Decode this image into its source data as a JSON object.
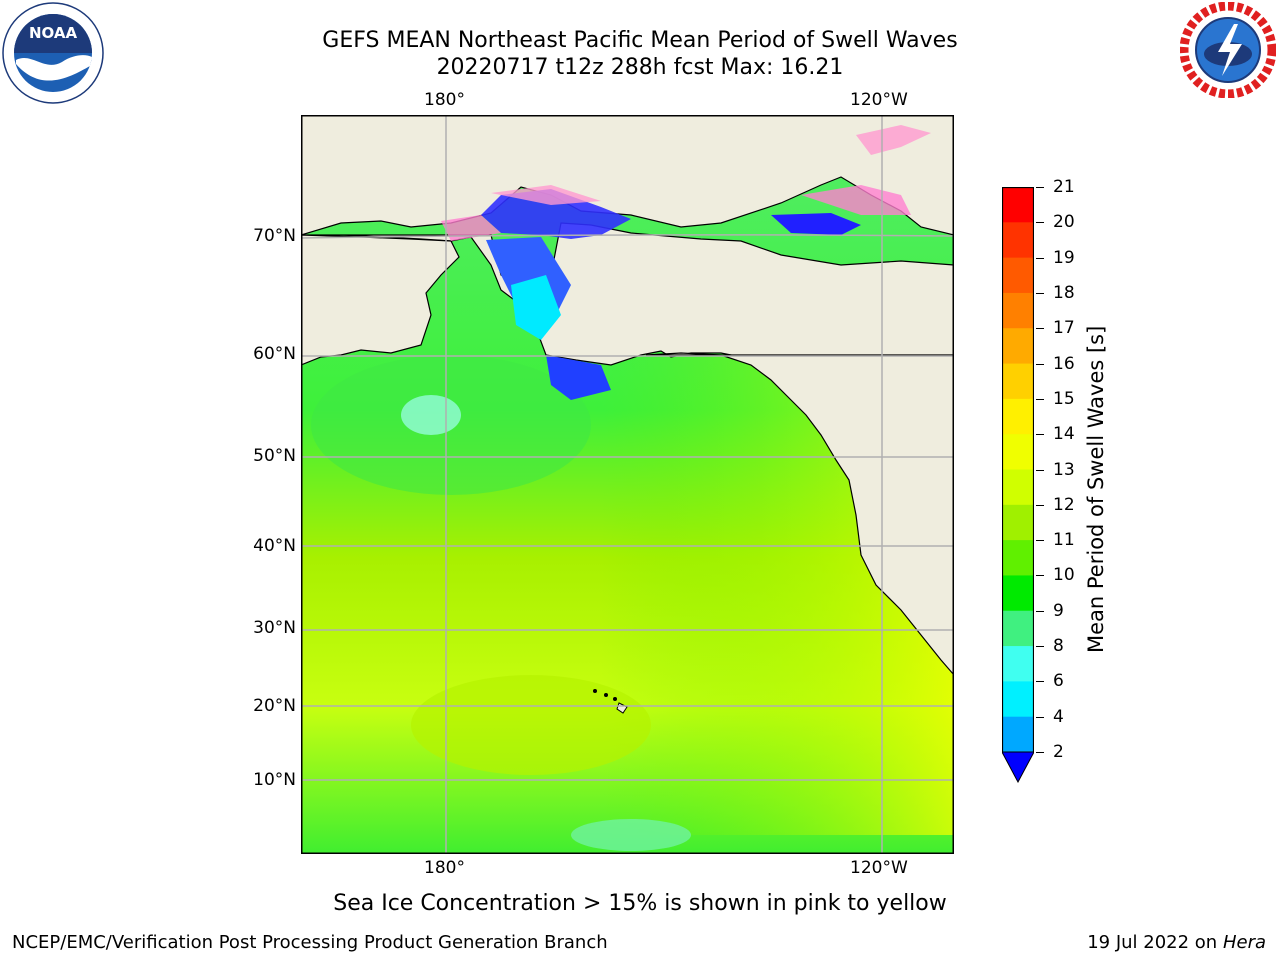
{
  "header": {
    "title_line1": "GEFS MEAN Northeast Pacific Mean Period of Swell Waves",
    "title_line2": "20220717 t12z 288h fcst   Max: 16.21"
  },
  "logos": {
    "noaa": {
      "text": "NOAA",
      "ring_text": "NATIONAL OCEANIC AND ATMOSPHERIC ADMINISTRATION · U.S. DEPARTMENT OF COMMERCE"
    },
    "nws": {
      "ring_text": "NATIONAL WEATHER SERVICE"
    }
  },
  "map": {
    "lon_labels_top": [
      "180°",
      "120°W"
    ],
    "lon_labels_bottom": [
      "180°",
      "120°W"
    ],
    "lat_labels": [
      "70°N",
      "60°N",
      "50°N",
      "40°N",
      "30°N",
      "20°N",
      "10°N"
    ],
    "land_color": "#efedde",
    "grid_color": "#b0b0b0"
  },
  "colorbar": {
    "title": "Mean Period of Swell Waves [s]",
    "ticks": [
      "21",
      "20",
      "19",
      "18",
      "17",
      "16",
      "15",
      "14",
      "13",
      "12",
      "11",
      "10",
      "9",
      "8",
      "6",
      "4",
      "2"
    ],
    "colors": [
      "#ff0000",
      "#ff3300",
      "#ff5a00",
      "#ff8000",
      "#ffaa00",
      "#ffd000",
      "#fff000",
      "#f0ff00",
      "#d0ff00",
      "#a0f000",
      "#60f000",
      "#00ea00",
      "#40f080",
      "#a0fff0",
      "#40fff0",
      "#00f0ff",
      "#00a8ff",
      "#0060ff"
    ],
    "under_color": "#0000ff"
  },
  "footnote": "Sea Ice Concentration > 15% is shown in pink to yellow",
  "footer": {
    "left": "NCEP/EMC/Verification Post Processing Product Generation Branch",
    "right_date": "19 Jul 2022 on ",
    "right_host": "Hera"
  }
}
